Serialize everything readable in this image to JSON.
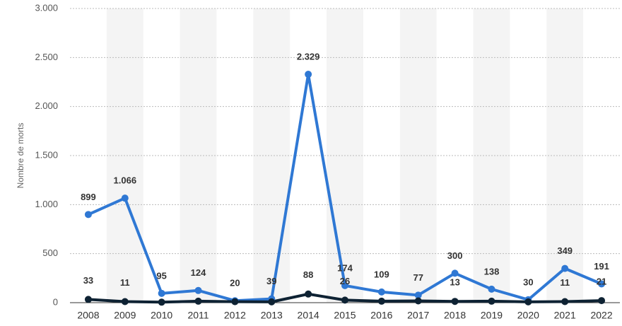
{
  "chart_data": {
    "type": "line",
    "y_label": "Nombre de morts",
    "categories": [
      "2008",
      "2009",
      "2010",
      "2011",
      "2012",
      "2013",
      "2014",
      "2015",
      "2016",
      "2017",
      "2018",
      "2019",
      "2020",
      "2021",
      "2022"
    ],
    "series": [
      {
        "color": "#2f78d4",
        "values": [
          899,
          1066,
          95,
          124,
          20,
          39,
          2329,
          174,
          109,
          77,
          300,
          138,
          30,
          349,
          191
        ],
        "value_labels": [
          "899",
          "1.066",
          "95",
          "124",
          "20",
          "39",
          "2.329",
          "174",
          "109",
          "77",
          "300",
          "138",
          "30",
          "349",
          "191"
        ]
      },
      {
        "color": "#0e2233",
        "values": [
          33,
          11,
          5,
          15,
          10,
          8,
          88,
          26,
          15,
          18,
          13,
          15,
          8,
          11,
          21
        ],
        "value_labels": [
          "33",
          "11",
          null,
          null,
          null,
          null,
          "88",
          "26",
          null,
          null,
          "13",
          null,
          null,
          "11",
          "21"
        ]
      }
    ],
    "ylim": [
      0,
      3000
    ],
    "yticks": [
      0,
      {
        "value": 500,
        "label": "500"
      },
      {
        "value": 1000,
        "label": "1.000"
      },
      {
        "value": 1500,
        "label": "1.500"
      },
      {
        "value": 2000,
        "label": "2.000"
      },
      {
        "value": 2500,
        "label": "2.500"
      },
      {
        "value": 3000,
        "label": "3.000"
      }
    ],
    "grid": true
  }
}
